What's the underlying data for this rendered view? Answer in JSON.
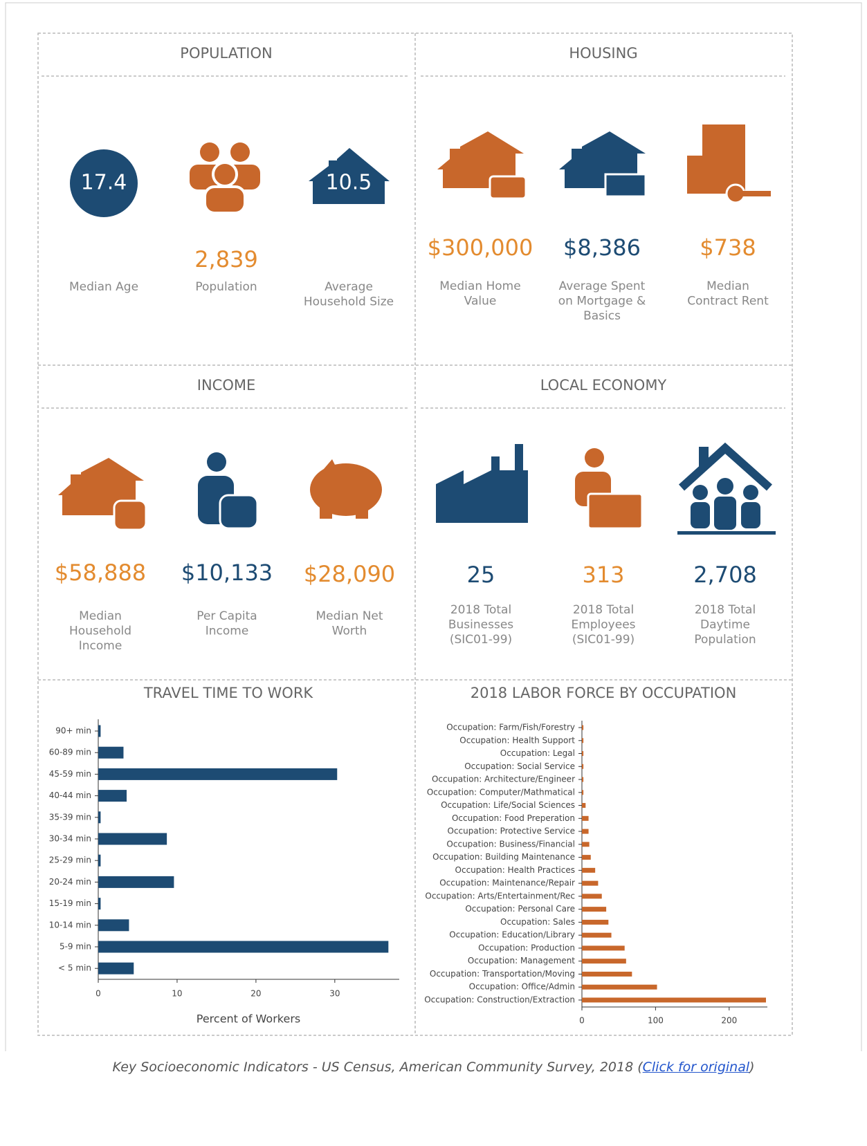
{
  "sections": [
    {
      "title": "POPULATION",
      "items": [
        {
          "value": "17.4",
          "label": [
            "Median Age"
          ],
          "color": "#ffffff"
        },
        {
          "value": "2,839",
          "label": [
            "Population"
          ],
          "color": "#e38b2f"
        },
        {
          "value": "10.5",
          "label": [
            "Average",
            "Household Size"
          ],
          "color": "#ffffff"
        }
      ]
    },
    {
      "title": "HOUSING",
      "items": [
        {
          "value": "$300,000",
          "label": [
            "Median Home",
            "Value"
          ],
          "color": "#e38b2f"
        },
        {
          "value": "$8,386",
          "label": [
            "Average Spent",
            "on Mortgage &",
            "Basics"
          ],
          "color": "#1d4b73"
        },
        {
          "value": "$738",
          "label": [
            "Median",
            "Contract Rent"
          ],
          "color": "#e38b2f"
        }
      ]
    },
    {
      "title": "INCOME",
      "items": [
        {
          "value": "$58,888",
          "label": [
            "Median",
            "Household",
            "Income"
          ],
          "color": "#e38b2f"
        },
        {
          "value": "$10,133",
          "label": [
            "Per Capita",
            "Income"
          ],
          "color": "#1d4b73"
        },
        {
          "value": "$28,090",
          "label": [
            "Median Net",
            "Worth"
          ],
          "color": "#e38b2f"
        }
      ]
    },
    {
      "title": "LOCAL ECONOMY",
      "items": [
        {
          "value": "25",
          "label": [
            "2018 Total",
            "Businesses",
            "(SIC01-99)"
          ],
          "color": "#1d4b73"
        },
        {
          "value": "313",
          "label": [
            "2018 Total",
            "Employees",
            "(SIC01-99)"
          ],
          "color": "#e38b2f"
        },
        {
          "value": "2,708",
          "label": [
            "2018 Total",
            "Daytime",
            "Population"
          ],
          "color": "#1d4b73"
        }
      ]
    }
  ],
  "chart_data": [
    {
      "type": "bar",
      "orientation": "horizontal",
      "title": "TRAVEL TIME TO WORK",
      "x_label": "Percent of Workers",
      "color": "#1d4b73",
      "categories": [
        "90+ min",
        "60-89 min",
        "45-59 min",
        "40-44 min",
        "35-39 min",
        "30-34 min",
        "25-29 min",
        "20-24 min",
        "15-19 min",
        "10-14 min",
        "5-9 min",
        "< 5 min"
      ],
      "values": [
        0.3,
        3.2,
        30.3,
        3.6,
        0.3,
        8.7,
        0.3,
        9.6,
        0.3,
        3.9,
        36.8,
        4.5
      ],
      "xlim": [
        0,
        38
      ],
      "xticks": [
        0,
        10,
        20,
        30
      ]
    },
    {
      "type": "bar",
      "orientation": "horizontal",
      "title": "2018 LABOR FORCE BY OCCUPATION",
      "color": "#c8672b",
      "categories": [
        "Occupation: Farm/Fish/Forestry",
        "Occupation: Health Support",
        "Occupation: Legal",
        "Occupation: Social Service",
        "Occupation: Architecture/Engineer",
        "Occupation: Computer/Mathmatical",
        "Occupation: Life/Social Sciences",
        "Occupation: Food Preperation",
        "Occupation: Protective Service",
        "Occupation: Business/Financial",
        "Occupation: Building Maintenance",
        "Occupation: Health Practices",
        "Occupation: Maintenance/Repair",
        "Occupation: Arts/Entertainment/Rec",
        "Occupation: Personal Care",
        "Occupation: Sales",
        "Occupation: Education/Library",
        "Occupation: Production",
        "Occupation: Management",
        "Occupation: Transportation/Moving",
        "Occupation: Office/Admin",
        "Occupation: Construction/Extraction"
      ],
      "values": [
        2,
        2,
        2,
        2,
        2,
        2,
        5,
        9,
        9,
        10,
        12,
        18,
        22,
        27,
        33,
        36,
        40,
        58,
        60,
        68,
        102,
        250
      ],
      "xlim": [
        0,
        250
      ],
      "xticks": [
        0,
        100,
        200
      ]
    }
  ],
  "caption": {
    "text": "Key Socioeconomic Indicators - US Census, American Community Survey, 2018 (",
    "link": "Click for original",
    "end": ")"
  }
}
